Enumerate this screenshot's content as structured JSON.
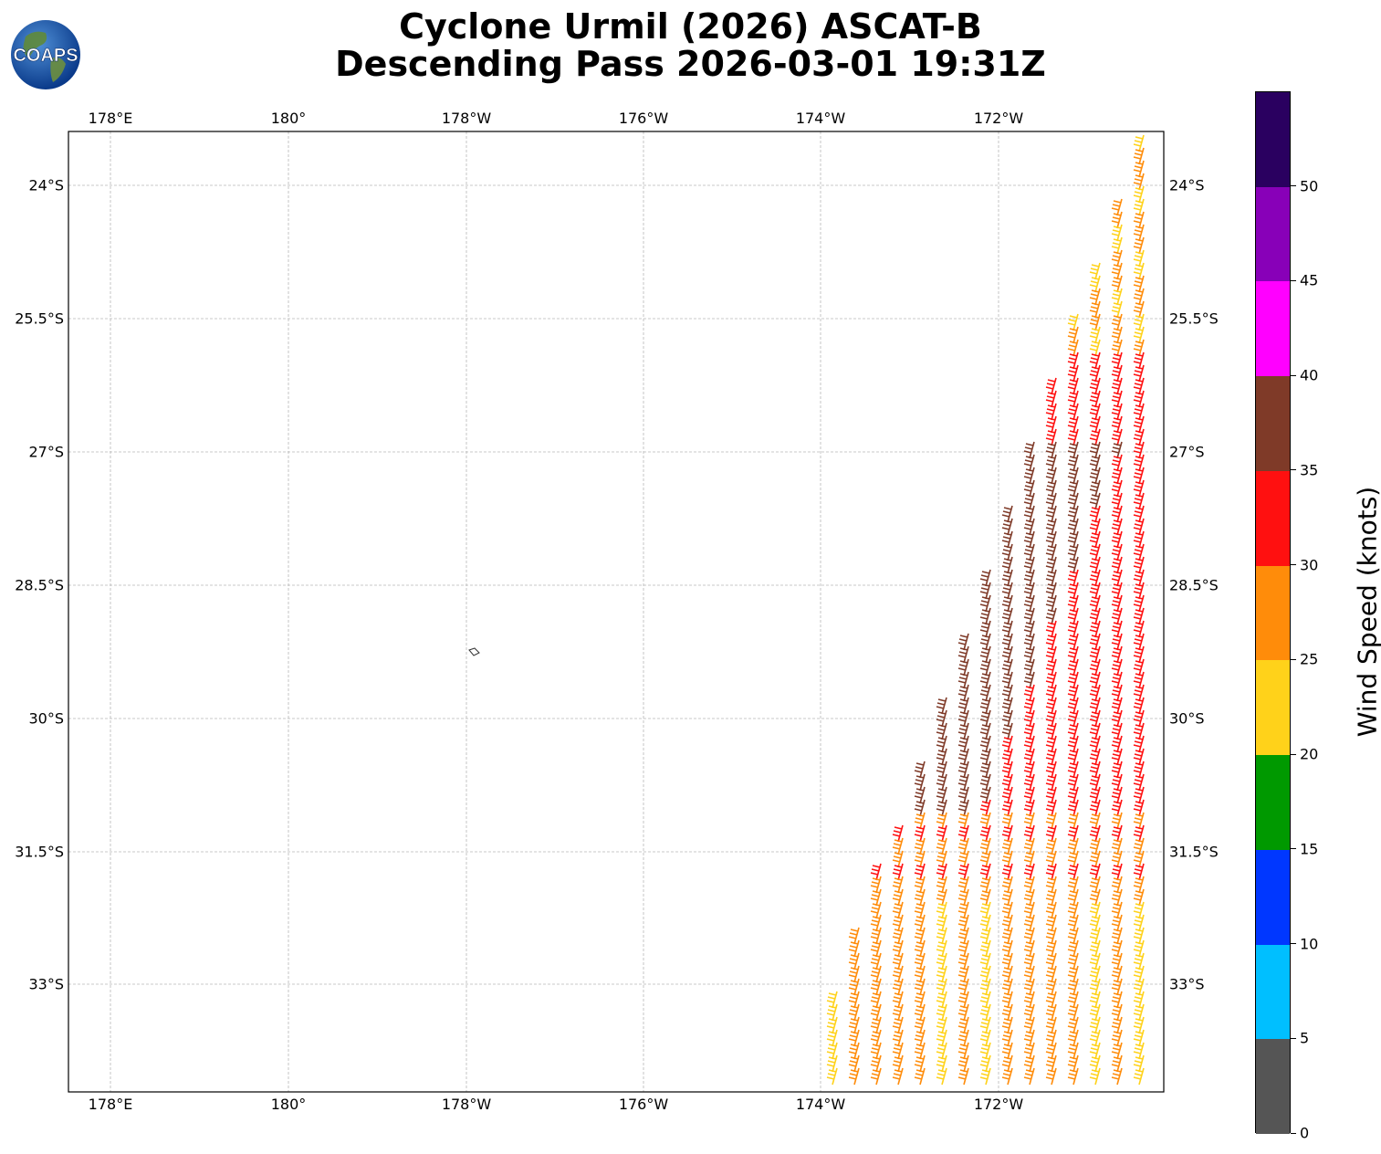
{
  "header": {
    "line1": "Cyclone Urmil (2026) ASCAT-B",
    "line2": "Descending Pass 2026-03-01 19:31Z",
    "logo_text": "COAPS",
    "logo_icon": "globe-icon"
  },
  "map": {
    "lon_ticks": [
      "178°E",
      "180°",
      "178°W",
      "176°W",
      "174°W",
      "172°W"
    ],
    "lat_ticks": [
      "24°S",
      "25.5°S",
      "27°S",
      "28.5°S",
      "30°S",
      "31.5°S",
      "33°S"
    ],
    "gridlines": true,
    "frame_color": "#000000",
    "barb_color_note": "barbs colored by speed bin",
    "extent": {
      "lon_west": 177.54,
      "lon_east": -170.15,
      "lat_north": -23.4,
      "lat_south": -34.2
    }
  },
  "colorbar": {
    "label": "Wind Speed (knots)",
    "ticks": [
      "0",
      "5",
      "10",
      "15",
      "20",
      "25",
      "30",
      "35",
      "40",
      "45",
      "50"
    ],
    "bins": [
      {
        "min": 0,
        "max": 5,
        "color": "#555555"
      },
      {
        "min": 5,
        "max": 10,
        "color": "#00bfff"
      },
      {
        "min": 10,
        "max": 15,
        "color": "#0037ff"
      },
      {
        "min": 15,
        "max": 20,
        "color": "#009900"
      },
      {
        "min": 20,
        "max": 25,
        "color": "#ffd21a"
      },
      {
        "min": 25,
        "max": 30,
        "color": "#ff8c0a"
      },
      {
        "min": 30,
        "max": 35,
        "color": "#ff1010"
      },
      {
        "min": 35,
        "max": 40,
        "color": "#7f3a28"
      },
      {
        "min": 40,
        "max": 45,
        "color": "#ff00ff"
      },
      {
        "min": 45,
        "max": 50,
        "color": "#8800b8"
      },
      {
        "min": 50,
        "max": 55,
        "color": "#2a0060"
      }
    ]
  }
}
